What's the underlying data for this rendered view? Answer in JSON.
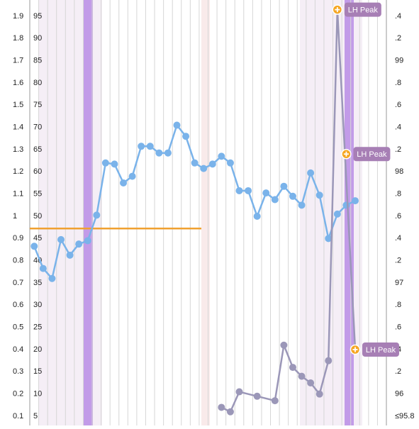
{
  "chart_data": {
    "type": "line",
    "xlim": [
      0.5,
      40.5
    ],
    "ylim": [
      0.1,
      1.9
    ],
    "yticks": [
      1.9,
      1.8,
      1.7,
      1.6,
      1.5,
      1.4,
      1.3,
      1.2,
      1.1,
      1,
      0.9,
      0.8,
      0.7,
      0.6,
      0.5,
      0.4,
      0.3,
      0.2,
      0.1
    ],
    "y3lim": [
      5,
      95
    ],
    "y3ticks": [
      95,
      90,
      85,
      80,
      75,
      70,
      65,
      60,
      55,
      50,
      45,
      40,
      35,
      30,
      25,
      20,
      15,
      10,
      5
    ],
    "y2lim": [
      95.8,
      99.4
    ],
    "y2ticks": [
      {
        "value": 99.4,
        "label": ".4"
      },
      {
        "value": 99.2,
        "label": ".2"
      },
      99,
      {
        "value": 98.8,
        "label": ".8"
      },
      {
        "value": 98.6,
        "label": ".6"
      },
      {
        "value": 98.4,
        "label": ".4"
      },
      {
        "value": 98.2,
        "label": ".2"
      },
      98,
      {
        "value": 97.8,
        "label": ".8"
      },
      {
        "value": 97.6,
        "label": ".6"
      },
      {
        "value": 97.4,
        "label": ".4"
      },
      {
        "value": 97.2,
        "label": ".2"
      },
      97,
      {
        "value": 96.8,
        "label": ".8"
      },
      {
        "value": 96.6,
        "label": ".6"
      },
      {
        "value": 96.4,
        "label": ".4"
      },
      {
        "value": 96.2,
        "label": ".2"
      },
      96,
      {
        "value": 95.8,
        "label": "≤95.8"
      }
    ],
    "cover_line": 97.49,
    "cover_color": "#f0a030",
    "series": [
      {
        "color": "#7ab3ea",
        "axis": "y2",
        "x": [
          1,
          2,
          3,
          4,
          5,
          6,
          7,
          8,
          9,
          10,
          11,
          12,
          13,
          14,
          15,
          16,
          17,
          18,
          19,
          20,
          21,
          22,
          23,
          24,
          25,
          26,
          27,
          28,
          29,
          30,
          31,
          32,
          33,
          34,
          35,
          36,
          37
        ],
        "values": [
          97.33,
          97.13,
          97.04,
          97.39,
          97.25,
          97.35,
          97.38,
          97.61,
          98.08,
          98.07,
          97.9,
          97.96,
          98.23,
          98.23,
          98.17,
          98.17,
          98.42,
          98.32,
          98.08,
          98.03,
          98.07,
          98.14,
          98.08,
          97.83,
          97.83,
          97.6,
          97.81,
          97.75,
          97.87,
          97.78,
          97.7,
          97.99,
          97.79,
          97.4,
          97.62,
          97.7,
          97.74
        ]
      },
      {
        "color": "#9b97b8",
        "x": [
          22,
          23,
          24,
          26,
          28,
          29,
          30,
          31,
          32,
          33,
          34,
          35,
          37
        ],
        "values": [
          0.14,
          0.12,
          0.21,
          0.19,
          0.17,
          0.42,
          0.32,
          0.28,
          0.25,
          0.2,
          0.35,
          1.93,
          0.4
        ]
      }
    ],
    "peaks": {
      "color": "#f5a623",
      "x": [
        35,
        36,
        37
      ],
      "values": [
        1.93,
        1.28,
        0.4
      ],
      "labels": [
        "LH Peak",
        "LH Peak",
        "LH Peak"
      ]
    }
  }
}
